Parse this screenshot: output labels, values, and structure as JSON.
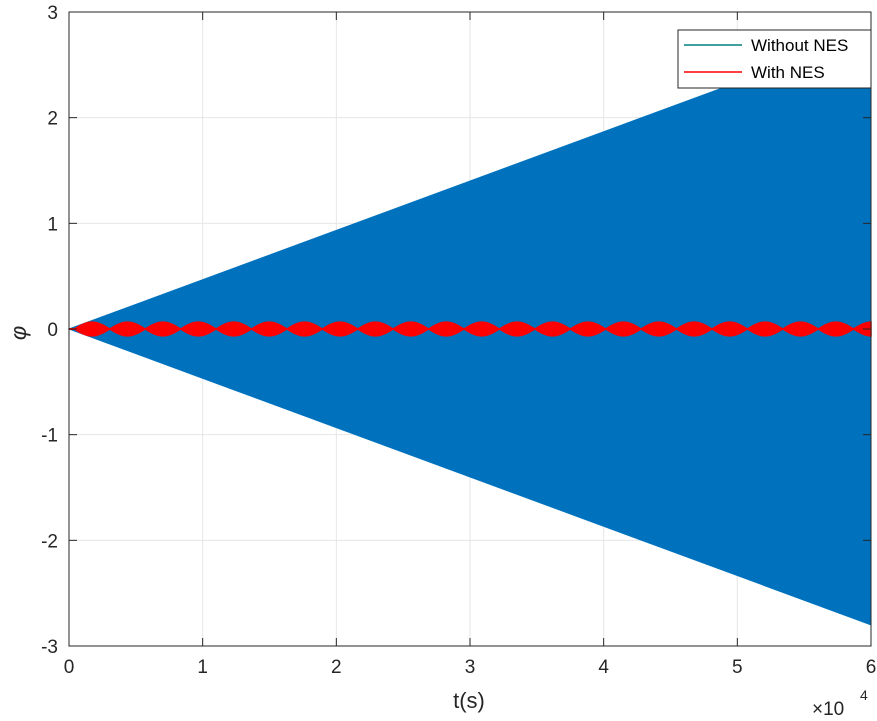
{
  "chart_data": {
    "type": "line",
    "xlabel": "t(s)",
    "ylabel": "φ",
    "x_exponent_label": "×10",
    "x_exponent_power": "4",
    "xlim": [
      0,
      60000
    ],
    "ylim": [
      -3,
      3
    ],
    "x_ticks": [
      0,
      10000,
      20000,
      30000,
      40000,
      50000,
      60000
    ],
    "x_tick_labels": [
      "0",
      "1",
      "2",
      "3",
      "4",
      "5",
      "6"
    ],
    "y_ticks": [
      -3,
      -2,
      -1,
      0,
      1,
      2,
      3
    ],
    "y_tick_labels": [
      "-3",
      "-2",
      "-1",
      "0",
      "1",
      "2",
      "3"
    ],
    "grid": true,
    "legend_position": "top-right",
    "series": [
      {
        "name": "Without NES",
        "color": "#0072BD",
        "legend_color": "#008080",
        "envelope": {
          "t": [
            0,
            60000
          ],
          "amplitude": [
            0,
            2.8
          ]
        }
      },
      {
        "name": "With NES",
        "color": "#FF0000",
        "beat_period": 2650,
        "beat_count": 23,
        "first_lobe_start": 400,
        "amplitude": 0.065
      }
    ]
  }
}
